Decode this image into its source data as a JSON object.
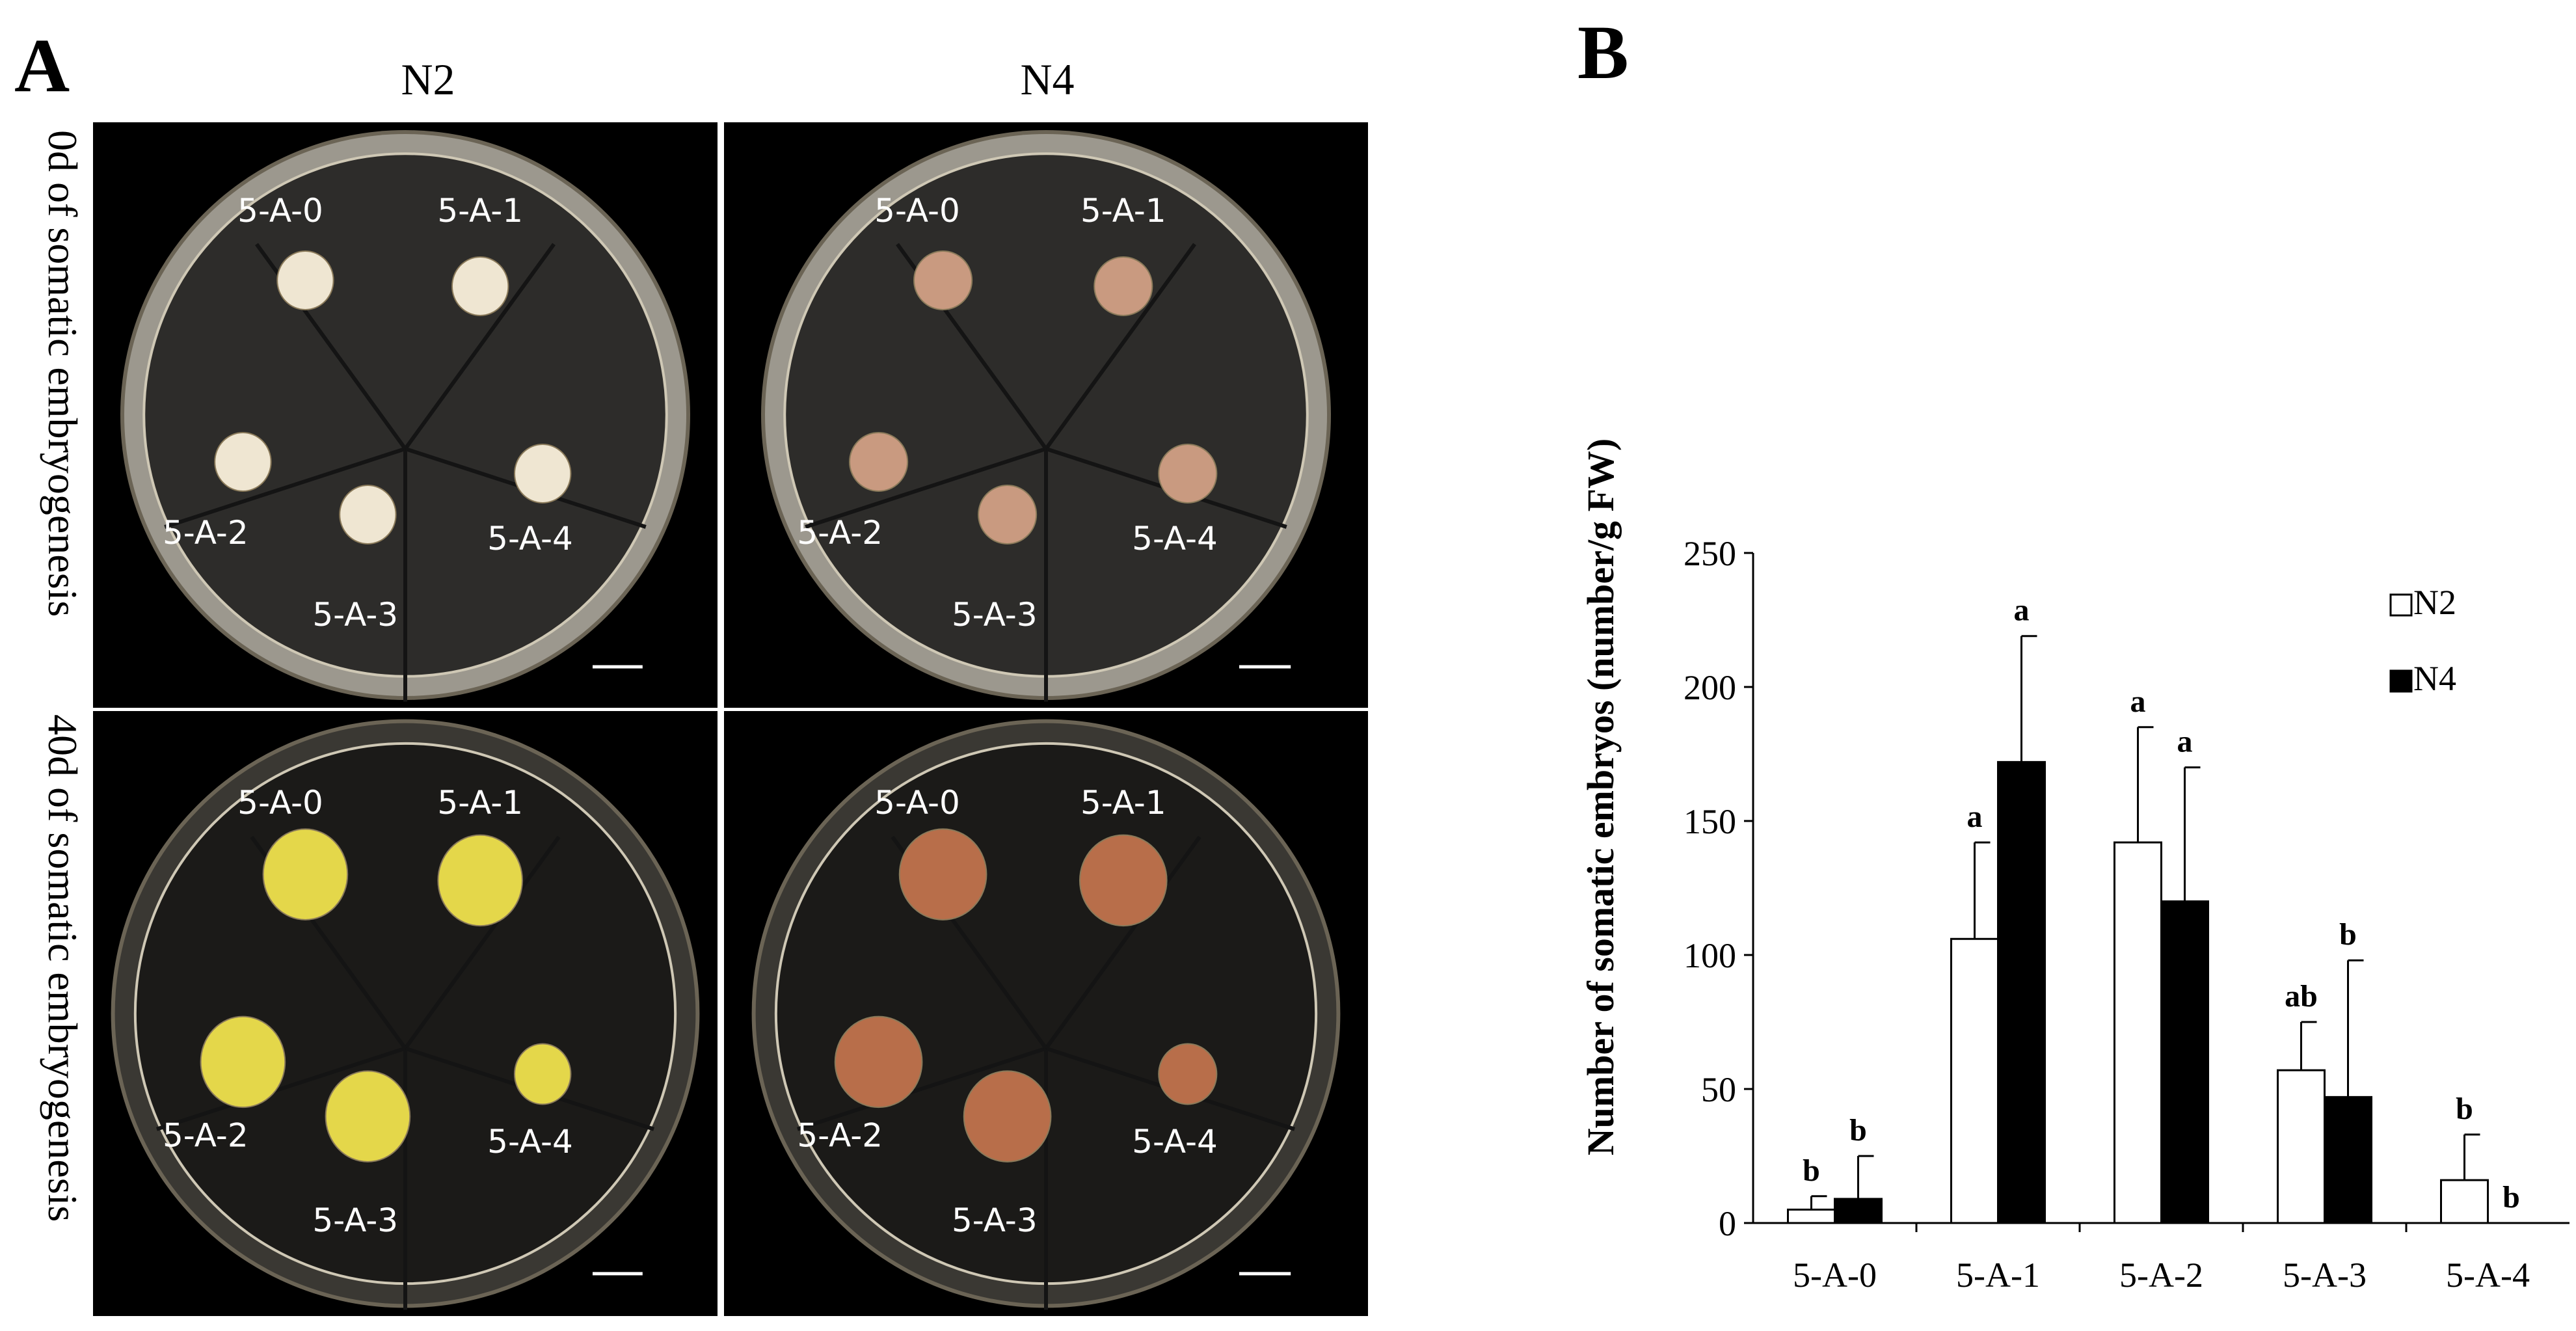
{
  "panel_a": {
    "letter": "A",
    "columns": [
      "N2",
      "N4"
    ],
    "rows": [
      "0d of somatic embryogenesis",
      "40d of somatic embryogenesis"
    ],
    "photos": [
      {
        "column": "N2",
        "row": "0d of somatic embryogenesis",
        "labels": [
          "5-A-0",
          "5-A-1",
          "5-A-2",
          "5-A-3",
          "5-A-4"
        ],
        "tissue_color": "#efe6d2",
        "dish_marks": [
          "0",
          "1",
          "2",
          "3",
          "4"
        ]
      },
      {
        "column": "N4",
        "row": "0d of somatic embryogenesis",
        "labels": [
          "5-A-0",
          "5-A-1",
          "5-A-2",
          "5-A-3",
          "5-A-4"
        ],
        "tissue_color": "#c99a80",
        "dish_marks": [
          "2",
          "3",
          "4"
        ]
      },
      {
        "column": "N2",
        "row": "40d of somatic embryogenesis",
        "labels": [
          "5-A-0",
          "5-A-1",
          "5-A-2",
          "5-A-3",
          "5-A-4"
        ],
        "tissue_color": "#e4d74a",
        "dish_marks": [
          "0",
          "1",
          "2",
          "3",
          "4"
        ]
      },
      {
        "column": "N4",
        "row": "40d of somatic embryogenesis",
        "labels": [
          "5-A-0",
          "5-A-1",
          "5-A-2",
          "5-A-3",
          "5-A-4"
        ],
        "tissue_color": "#b86e4a",
        "dish_marks": [
          "0",
          "1",
          "2",
          "3",
          "4"
        ]
      }
    ]
  },
  "chart_data": {
    "panel_letter": "B",
    "type": "bar",
    "title": "",
    "xlabel": "",
    "ylabel": "Number of somatic embryos (number/g FW)",
    "ylim": [
      0,
      250
    ],
    "yticks": [
      0,
      50,
      100,
      150,
      200,
      250
    ],
    "categories": [
      "5-A-0",
      "5-A-1",
      "5-A-2",
      "5-A-3",
      "5-A-4"
    ],
    "legend_position": "top-right",
    "series": [
      {
        "name": "N2",
        "fill": "#ffffff",
        "values": [
          5,
          106,
          142,
          57,
          16
        ],
        "errors": [
          5,
          36,
          43,
          18,
          17
        ],
        "letters": [
          "b",
          "a",
          "a",
          "ab",
          "b"
        ]
      },
      {
        "name": "N4",
        "fill": "#000000",
        "values": [
          9,
          172,
          120,
          47,
          0
        ],
        "errors": [
          16,
          47,
          50,
          51,
          0
        ],
        "letters": [
          "b",
          "a",
          "a",
          "b",
          "b"
        ]
      }
    ]
  }
}
